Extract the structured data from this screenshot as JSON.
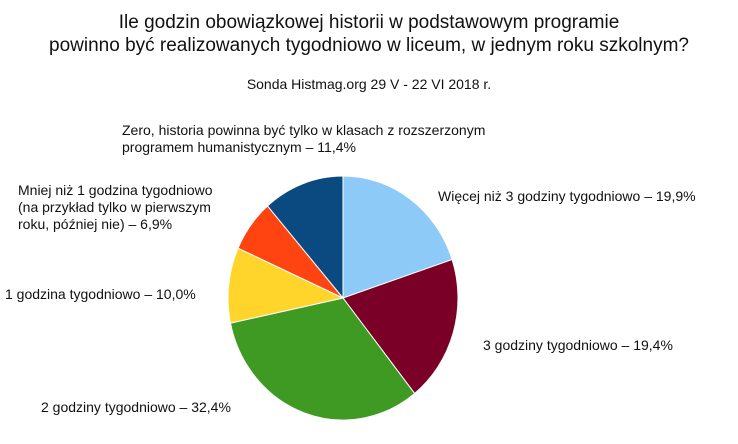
{
  "chart_data": {
    "type": "pie",
    "title_lines": [
      "Ile godzin obowiązkowej historii w podstawowym programie",
      "powinno być realizowanych tygodniowo w liceum, w jednym roku szkolnym?"
    ],
    "subtitle": "Sonda Histmag.org 29 V - 22 VI 2018 r.",
    "slices": [
      {
        "label_lines": [
          "Więcej niż 3 godziny tygodniowo – 19,9%"
        ],
        "value": 19.9,
        "color": "#8ecaf8"
      },
      {
        "label_lines": [
          "3 godziny tygodniowo – 19,4%"
        ],
        "value": 19.4,
        "color": "#7a0028"
      },
      {
        "label_lines": [
          "2 godziny tygodniowo – 32,4%"
        ],
        "value": 32.4,
        "color": "#3f9a23"
      },
      {
        "label_lines": [
          "1 godzina tygodniowo – 10,0%"
        ],
        "value": 10.0,
        "color": "#ffd52b"
      },
      {
        "label_lines": [
          "Mniej niż 1 godzina tygodniowo",
          "(na przykład tylko w pierwszym",
          "roku, później nie) – 6,9%"
        ],
        "value": 6.9,
        "color": "#ff4412"
      },
      {
        "label_lines": [
          "Zero, historia powinna być tylko w klasach z rozszerzonym",
          "programem humanistycznym – 11,4%"
        ],
        "value": 11.4,
        "color": "#0a4a80"
      }
    ]
  }
}
